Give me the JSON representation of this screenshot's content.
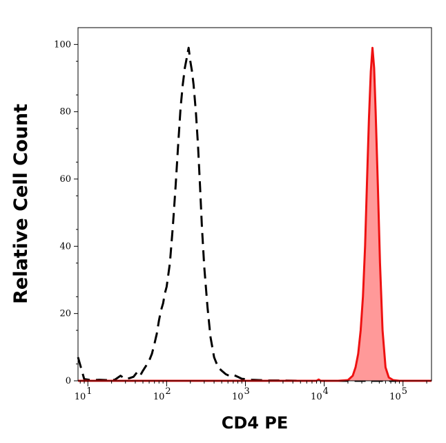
{
  "chart_data": {
    "type": "line",
    "xlabel": "CD4 PE",
    "ylabel": "Relative Cell Count",
    "x_scale": "log",
    "xlim": [
      7.5,
      230000
    ],
    "ylim": [
      0,
      105
    ],
    "grid": false,
    "y_ticks": [
      "0",
      "20",
      "40",
      "60",
      "80",
      "100"
    ],
    "y_tick_values": [
      0,
      20,
      40,
      60,
      80,
      100
    ],
    "x_ticks": [
      {
        "value": 10,
        "base": "10",
        "exp": "1"
      },
      {
        "value": 100,
        "base": "10",
        "exp": "2"
      },
      {
        "value": 1000,
        "base": "10",
        "exp": "3"
      },
      {
        "value": 10000,
        "base": "10",
        "exp": "4"
      },
      {
        "value": 100000,
        "base": "10",
        "exp": "5"
      }
    ],
    "series": [
      {
        "style": "dashed",
        "color": "#000000",
        "fill": "none",
        "x": [
          7.5,
          9,
          11,
          14,
          18,
          22,
          26,
          30,
          34,
          38,
          42,
          46,
          50,
          55,
          60,
          65,
          70,
          75,
          80,
          85,
          90,
          95,
          100,
          110,
          120,
          130,
          140,
          150,
          160,
          170,
          180,
          190,
          200,
          210,
          220,
          235,
          250,
          265,
          280,
          300,
          330,
          360,
          400,
          450,
          500,
          560,
          620,
          700,
          800,
          900,
          1000,
          1200,
          1500,
          2000,
          3000,
          5000,
          8000,
          12000,
          20000,
          40000,
          100000,
          230000
        ],
        "y": [
          7,
          0.5,
          0.2,
          0.3,
          0.2,
          0.3,
          1.5,
          0.5,
          0.8,
          1.2,
          2.5,
          1.5,
          3,
          4.5,
          6,
          8,
          11,
          14,
          18,
          21,
          23,
          26,
          28,
          35,
          46,
          58,
          70,
          81,
          88,
          93,
          96,
          99,
          95,
          92,
          88,
          80,
          70,
          58,
          46,
          34,
          22,
          13,
          7,
          4,
          3,
          2,
          1.5,
          1.8,
          1.2,
          0.6,
          0.5,
          0.3,
          0.2,
          0.1,
          0.1,
          0,
          0,
          0,
          0,
          0,
          0,
          0
        ]
      },
      {
        "style": "solid",
        "color": "#ee1111",
        "fill": "#ff9999",
        "x": [
          7.5,
          100,
          1000,
          5000,
          8000,
          8500,
          9000,
          10000,
          15000,
          20000,
          23000,
          25000,
          27000,
          29000,
          31000,
          33000,
          35000,
          37000,
          39000,
          41000,
          43000,
          45000,
          48000,
          51000,
          55000,
          60000,
          66000,
          75000,
          90000,
          120000,
          230000
        ],
        "y": [
          0,
          0,
          0,
          0,
          0,
          0.4,
          0,
          0,
          0,
          0.2,
          1.5,
          4,
          8,
          15,
          25,
          40,
          60,
          78,
          92,
          99,
          93,
          80,
          58,
          35,
          15,
          4,
          1,
          0.2,
          0,
          0,
          0
        ]
      }
    ]
  }
}
